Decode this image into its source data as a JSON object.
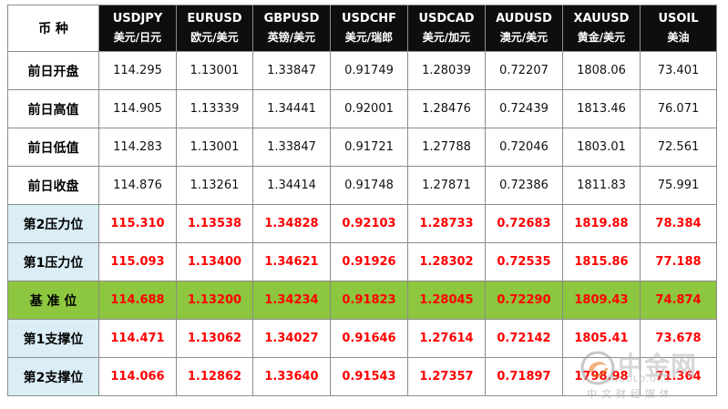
{
  "table": {
    "corner_label": "币 种",
    "columns": [
      {
        "code": "USDJPY",
        "name": "美元/日元"
      },
      {
        "code": "EURUSD",
        "name": "欧元/美元"
      },
      {
        "code": "GBPUSD",
        "name": "英镑/美元"
      },
      {
        "code": "USDCHF",
        "name": "美元/瑞郎"
      },
      {
        "code": "USDCAD",
        "name": "美元/加元"
      },
      {
        "code": "AUDUSD",
        "name": "澳元/美元"
      },
      {
        "code": "XAUUSD",
        "name": "黄金/美元"
      },
      {
        "code": "USOIL",
        "name": "美油"
      }
    ],
    "rows": [
      {
        "label": "前日开盘",
        "style": "plain",
        "values": [
          "114.295",
          "1.13001",
          "1.33847",
          "0.91749",
          "1.28039",
          "0.72207",
          "1808.06",
          "73.401"
        ]
      },
      {
        "label": "前日高值",
        "style": "plain",
        "values": [
          "114.905",
          "1.13339",
          "1.34441",
          "0.92001",
          "1.28476",
          "0.72439",
          "1813.46",
          "76.071"
        ]
      },
      {
        "label": "前日低值",
        "style": "plain",
        "values": [
          "114.283",
          "1.13001",
          "1.33847",
          "0.91721",
          "1.27788",
          "0.72046",
          "1803.01",
          "72.561"
        ]
      },
      {
        "label": "前日收盘",
        "style": "plain",
        "values": [
          "114.876",
          "1.13261",
          "1.34414",
          "0.91748",
          "1.27871",
          "0.72386",
          "1811.83",
          "75.991"
        ]
      },
      {
        "label": "第2压力位",
        "style": "level",
        "values": [
          "115.310",
          "1.13538",
          "1.34828",
          "0.92103",
          "1.28733",
          "0.72683",
          "1819.88",
          "78.384"
        ]
      },
      {
        "label": "第1压力位",
        "style": "level",
        "values": [
          "115.093",
          "1.13400",
          "1.34621",
          "0.91926",
          "1.28302",
          "0.72535",
          "1815.86",
          "77.188"
        ]
      },
      {
        "label": "基 准 位",
        "style": "pivot",
        "values": [
          "114.688",
          "1.13200",
          "1.34234",
          "0.91823",
          "1.28045",
          "0.72290",
          "1809.43",
          "74.874"
        ]
      },
      {
        "label": "第1支撑位",
        "style": "level",
        "values": [
          "114.471",
          "1.13062",
          "1.34027",
          "0.91646",
          "1.27614",
          "0.72142",
          "1805.41",
          "73.678"
        ]
      },
      {
        "label": "第2支撑位",
        "style": "level",
        "values": [
          "114.066",
          "1.12862",
          "1.33640",
          "0.91543",
          "1.27357",
          "0.71897",
          "1798.98",
          "71.364"
        ]
      }
    ]
  },
  "watermark": {
    "name": "中金网",
    "domain": "CNGOLD.ORG",
    "slogan": "中文财经媒体",
    "colors": {
      "logo_orange": "#e8731a",
      "logo_gray": "#9a9a9a"
    }
  },
  "colors": {
    "header_bg": "#0e0e0e",
    "header_text": "#ffffff",
    "level_text": "#ff0000",
    "pivot_bg": "#8dc63f",
    "level_label_bg": "#dbeef7",
    "border": "#8c8c8c"
  }
}
